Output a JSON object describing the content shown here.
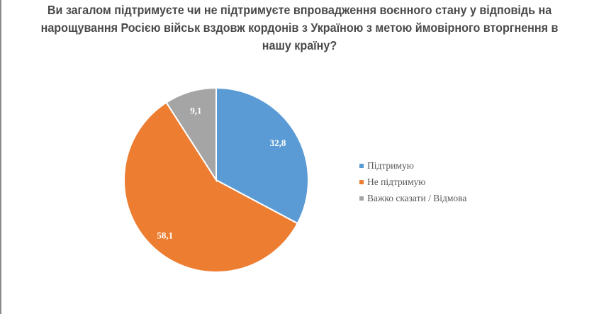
{
  "title": "Ви загалом підтримуєте чи не підтримуєте впровадження воєнного стану у відповідь на нарощування Росією військ вздовж кордонів з Україною з метою ймовірного вторгнення в нашу країну?",
  "chart_data": {
    "type": "pie",
    "title": "Ви загалом підтримуєте чи не підтримуєте впровадження воєнного стану у відповідь на нарощування Росією військ вздовж кордонів з Україною з метою ймовірного вторгнення в нашу країну?",
    "categories": [
      "Підтримую",
      "Не підтримую",
      "Важко сказати / Відмова"
    ],
    "values": [
      32.8,
      58.1,
      9.1
    ],
    "value_labels": [
      "32,8",
      "58,1",
      "9,1"
    ],
    "colors": [
      "#5B9BD5",
      "#ED7D31",
      "#A5A5A5"
    ],
    "start_angle": "12 o'clock, clockwise",
    "legend_position": "right"
  },
  "legend": [
    {
      "label": "Підтримую",
      "color": "#5B9BD5"
    },
    {
      "label": "Не підтримую",
      "color": "#ED7D31"
    },
    {
      "label": "Важко сказати / Відмова",
      "color": "#A5A5A5"
    }
  ]
}
